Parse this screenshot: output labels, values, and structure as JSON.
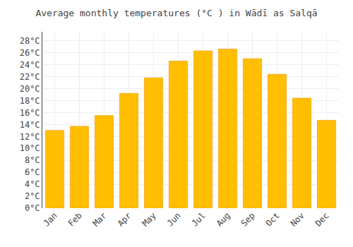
{
  "chart_data": {
    "type": "bar",
    "title": "Average monthly temperatures (°C ) in Wādī as Salqā",
    "categories": [
      "Jan",
      "Feb",
      "Mar",
      "Apr",
      "May",
      "Jun",
      "Jul",
      "Aug",
      "Sep",
      "Oct",
      "Nov",
      "Dec"
    ],
    "values": [
      13.0,
      13.7,
      15.5,
      19.2,
      21.8,
      24.6,
      26.3,
      26.6,
      25.0,
      22.4,
      18.4,
      14.7
    ],
    "color": "#FFBE00",
    "ylim": [
      0,
      29.5
    ],
    "yticks": [
      {
        "value": 0,
        "label": "0°C"
      },
      {
        "value": 2,
        "label": "2°C"
      },
      {
        "value": 4,
        "label": "4°C"
      },
      {
        "value": 6,
        "label": "6°C"
      },
      {
        "value": 8,
        "label": "8°C"
      },
      {
        "value": 10,
        "label": "10°C"
      },
      {
        "value": 12,
        "label": "12°C"
      },
      {
        "value": 14,
        "label": "14°C"
      },
      {
        "value": 16,
        "label": "16°C"
      },
      {
        "value": 18,
        "label": "18°C"
      },
      {
        "value": 20,
        "label": "20°C"
      },
      {
        "value": 22,
        "label": "22°C"
      },
      {
        "value": 24,
        "label": "24°C"
      },
      {
        "value": 26,
        "label": "26°C"
      },
      {
        "value": 28,
        "label": "28°C"
      }
    ],
    "grid": true
  }
}
